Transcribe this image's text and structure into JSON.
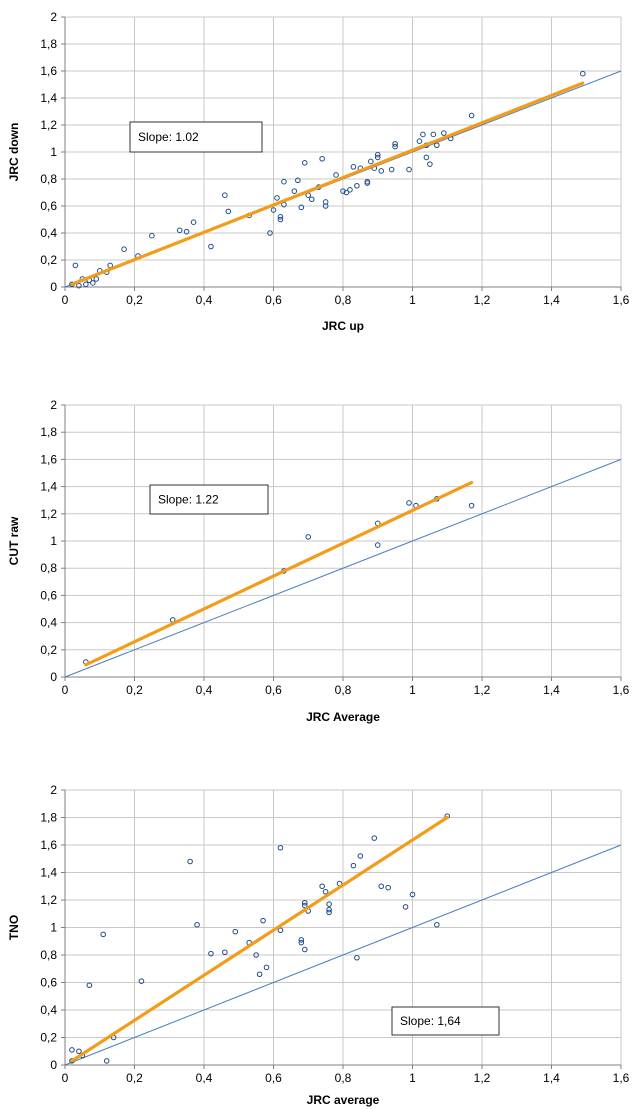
{
  "chart_data": [
    {
      "type": "scatter",
      "xlabel": "JRC up",
      "ylabel": "JRC down",
      "xlim": [
        0,
        1.6
      ],
      "ylim": [
        0,
        2
      ],
      "xticks": [
        "0",
        "0,2",
        "0,4",
        "0,6",
        "0,8",
        "1",
        "1,2",
        "1,4",
        "1,6"
      ],
      "yticks": [
        "0",
        "0,2",
        "0,4",
        "0,6",
        "0,8",
        "1",
        "1,2",
        "1,4",
        "1,6",
        "1,8",
        "2"
      ],
      "annotation": "Slope: 1.02",
      "reference_line": {
        "x": [
          0,
          1.6
        ],
        "y": [
          0,
          1.6
        ]
      },
      "fit_line": {
        "x": [
          0.02,
          1.49
        ],
        "y": [
          0.02,
          1.51
        ]
      },
      "points": [
        [
          0.02,
          0.02
        ],
        [
          0.03,
          0.16
        ],
        [
          0.04,
          0.01
        ],
        [
          0.05,
          0.06
        ],
        [
          0.06,
          0.02
        ],
        [
          0.07,
          0.05
        ],
        [
          0.08,
          0.03
        ],
        [
          0.09,
          0.06
        ],
        [
          0.1,
          0.12
        ],
        [
          0.12,
          0.11
        ],
        [
          0.13,
          0.16
        ],
        [
          0.17,
          0.28
        ],
        [
          0.21,
          0.23
        ],
        [
          0.25,
          0.38
        ],
        [
          0.33,
          0.42
        ],
        [
          0.35,
          0.41
        ],
        [
          0.37,
          0.48
        ],
        [
          0.42,
          0.3
        ],
        [
          0.46,
          0.68
        ],
        [
          0.47,
          0.56
        ],
        [
          0.53,
          0.53
        ],
        [
          0.59,
          0.4
        ],
        [
          0.6,
          0.57
        ],
        [
          0.61,
          0.66
        ],
        [
          0.62,
          0.52
        ],
        [
          0.62,
          0.5
        ],
        [
          0.63,
          0.78
        ],
        [
          0.63,
          0.61
        ],
        [
          0.66,
          0.71
        ],
        [
          0.67,
          0.79
        ],
        [
          0.68,
          0.59
        ],
        [
          0.69,
          0.92
        ],
        [
          0.7,
          0.68
        ],
        [
          0.71,
          0.65
        ],
        [
          0.73,
          0.74
        ],
        [
          0.74,
          0.95
        ],
        [
          0.75,
          0.63
        ],
        [
          0.75,
          0.6
        ],
        [
          0.78,
          0.83
        ],
        [
          0.8,
          0.71
        ],
        [
          0.81,
          0.7
        ],
        [
          0.82,
          0.72
        ],
        [
          0.83,
          0.89
        ],
        [
          0.84,
          0.75
        ],
        [
          0.85,
          0.88
        ],
        [
          0.87,
          0.78
        ],
        [
          0.87,
          0.77
        ],
        [
          0.88,
          0.93
        ],
        [
          0.89,
          0.88
        ],
        [
          0.9,
          0.98
        ],
        [
          0.9,
          0.96
        ],
        [
          0.91,
          0.86
        ],
        [
          0.94,
          0.87
        ],
        [
          0.95,
          1.04
        ],
        [
          0.95,
          1.06
        ],
        [
          0.99,
          0.87
        ],
        [
          1.02,
          1.08
        ],
        [
          1.03,
          1.13
        ],
        [
          1.04,
          1.05
        ],
        [
          1.04,
          0.96
        ],
        [
          1.05,
          0.91
        ],
        [
          1.06,
          1.13
        ],
        [
          1.07,
          1.05
        ],
        [
          1.09,
          1.14
        ],
        [
          1.11,
          1.1
        ],
        [
          1.17,
          1.27
        ],
        [
          1.49,
          1.58
        ]
      ]
    },
    {
      "type": "scatter",
      "xlabel": "JRC Average",
      "ylabel": "CUT raw",
      "xlim": [
        0,
        1.6
      ],
      "ylim": [
        0,
        2
      ],
      "xticks": [
        "0",
        "0,2",
        "0,4",
        "0,6",
        "0,8",
        "1",
        "1,2",
        "1,4",
        "1,6"
      ],
      "yticks": [
        "0",
        "0,2",
        "0,4",
        "0,6",
        "0,8",
        "1",
        "1,2",
        "1,4",
        "1,6",
        "1,8",
        "2"
      ],
      "annotation": "Slope: 1.22",
      "reference_line": {
        "x": [
          0,
          1.6
        ],
        "y": [
          0,
          1.6
        ]
      },
      "fit_line": {
        "x": [
          0.06,
          1.17
        ],
        "y": [
          0.09,
          1.43
        ]
      },
      "points": [
        [
          0.06,
          0.11
        ],
        [
          0.31,
          0.42
        ],
        [
          0.63,
          0.78
        ],
        [
          0.7,
          1.03
        ],
        [
          0.9,
          0.97
        ],
        [
          0.9,
          1.13
        ],
        [
          0.99,
          1.28
        ],
        [
          1.01,
          1.26
        ],
        [
          1.07,
          1.31
        ],
        [
          1.17,
          1.26
        ]
      ]
    },
    {
      "type": "scatter",
      "xlabel": "JRC average",
      "ylabel": "TNO",
      "xlim": [
        0,
        1.6
      ],
      "ylim": [
        0,
        2
      ],
      "xticks": [
        "0",
        "0,2",
        "0,4",
        "0,6",
        "0,8",
        "1",
        "1,2",
        "1,4",
        "1,6"
      ],
      "yticks": [
        "0",
        "0,2",
        "0,4",
        "0,6",
        "0,8",
        "1",
        "1,2",
        "1,4",
        "1,6",
        "1,8",
        "2"
      ],
      "annotation": "Slope: 1,64",
      "reference_line": {
        "x": [
          0,
          1.6
        ],
        "y": [
          0,
          1.6
        ]
      },
      "fit_line": {
        "x": [
          0.02,
          1.1
        ],
        "y": [
          0.03,
          1.8
        ]
      },
      "points": [
        [
          0.02,
          0.11
        ],
        [
          0.02,
          0.03
        ],
        [
          0.04,
          0.1
        ],
        [
          0.05,
          0.07
        ],
        [
          0.07,
          0.58
        ],
        [
          0.11,
          0.95
        ],
        [
          0.12,
          0.03
        ],
        [
          0.14,
          0.2
        ],
        [
          0.22,
          0.61
        ],
        [
          0.36,
          1.48
        ],
        [
          0.38,
          1.02
        ],
        [
          0.42,
          0.81
        ],
        [
          0.46,
          0.82
        ],
        [
          0.49,
          0.97
        ],
        [
          0.53,
          0.89
        ],
        [
          0.55,
          0.8
        ],
        [
          0.56,
          0.66
        ],
        [
          0.57,
          1.05
        ],
        [
          0.58,
          0.71
        ],
        [
          0.62,
          1.58
        ],
        [
          0.62,
          0.98
        ],
        [
          0.68,
          0.91
        ],
        [
          0.68,
          0.89
        ],
        [
          0.69,
          1.16
        ],
        [
          0.69,
          1.18
        ],
        [
          0.69,
          0.84
        ],
        [
          0.7,
          1.12
        ],
        [
          0.74,
          1.3
        ],
        [
          0.75,
          1.26
        ],
        [
          0.76,
          1.17
        ],
        [
          0.76,
          1.11
        ],
        [
          0.76,
          1.13
        ],
        [
          0.79,
          1.32
        ],
        [
          0.83,
          1.45
        ],
        [
          0.84,
          0.78
        ],
        [
          0.85,
          1.52
        ],
        [
          0.89,
          1.65
        ],
        [
          0.91,
          1.3
        ],
        [
          0.93,
          1.29
        ],
        [
          0.98,
          1.15
        ],
        [
          1.0,
          1.24
        ],
        [
          1.07,
          1.02
        ],
        [
          1.1,
          1.81
        ]
      ]
    }
  ]
}
